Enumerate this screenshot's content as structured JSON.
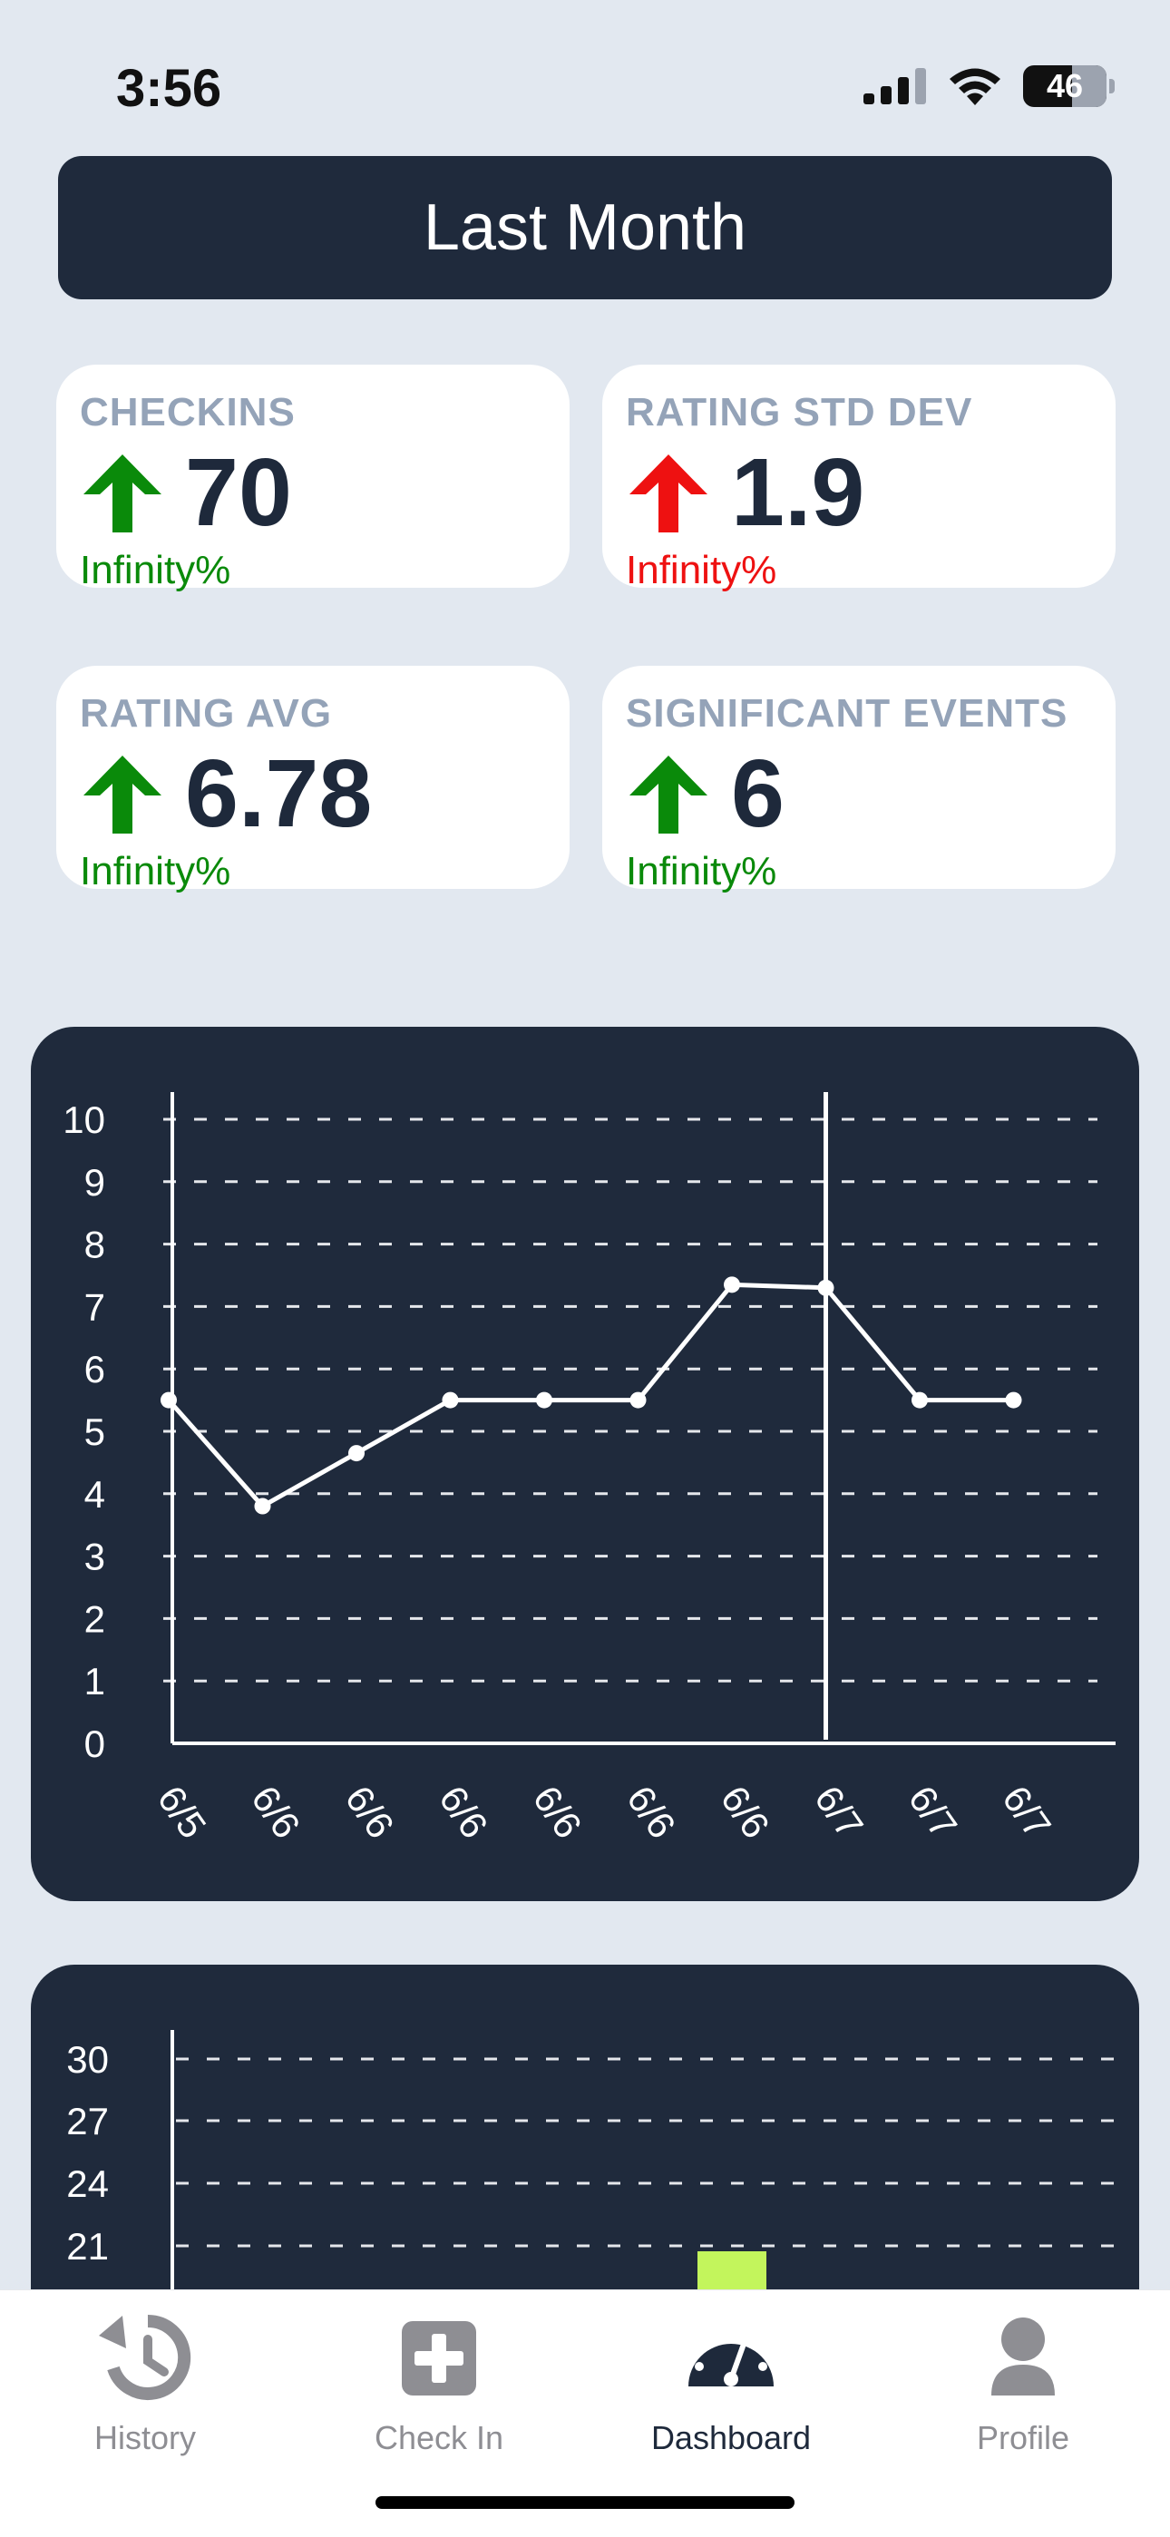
{
  "status": {
    "time": "3:56",
    "battery": "46"
  },
  "period": {
    "label": "Last Month"
  },
  "stats": [
    {
      "label": "CHECKINS",
      "value": "70",
      "change": "Infinity%",
      "direction": "up",
      "color": "#0a8a0a"
    },
    {
      "label": "RATING STD DEV",
      "value": "1.9",
      "change": "Infinity%",
      "direction": "up",
      "color": "#ee1111"
    },
    {
      "label": "RATING AVG",
      "value": "6.78",
      "change": "Infinity%",
      "direction": "up",
      "color": "#0a8a0a"
    },
    {
      "label": "SIGNIFICANT EVENTS",
      "value": "6",
      "change": "Infinity%",
      "direction": "up",
      "color": "#0a8a0a"
    }
  ],
  "chart_data": [
    {
      "type": "line",
      "x": [
        "6/5",
        "6/6",
        "6/6",
        "6/6",
        "6/6",
        "6/6",
        "6/6",
        "6/7",
        "6/7",
        "6/7"
      ],
      "values": [
        5.5,
        3.8,
        4.65,
        5.5,
        5.5,
        5.5,
        7.35,
        7.3,
        5.5,
        5.5
      ],
      "y_ticks": [
        0,
        1,
        2,
        3,
        4,
        5,
        6,
        7,
        8,
        9,
        10
      ],
      "ylim": [
        0,
        10
      ],
      "grid": true,
      "marker_line_after_index": 7,
      "line_color": "#ffffff"
    },
    {
      "type": "bar",
      "y_ticks": [
        21,
        24,
        27,
        30
      ],
      "visible_ylim": [
        21,
        30
      ],
      "grid": true,
      "bar_color": "#c3f55c",
      "bars_visible_index": 6
    }
  ],
  "tabs": [
    {
      "label": "History",
      "icon": "history-icon",
      "active": false
    },
    {
      "label": "Check In",
      "icon": "plus-square-icon",
      "active": false
    },
    {
      "label": "Dashboard",
      "icon": "dashboard-gauge-icon",
      "active": true
    },
    {
      "label": "Profile",
      "icon": "profile-icon",
      "active": false
    }
  ]
}
